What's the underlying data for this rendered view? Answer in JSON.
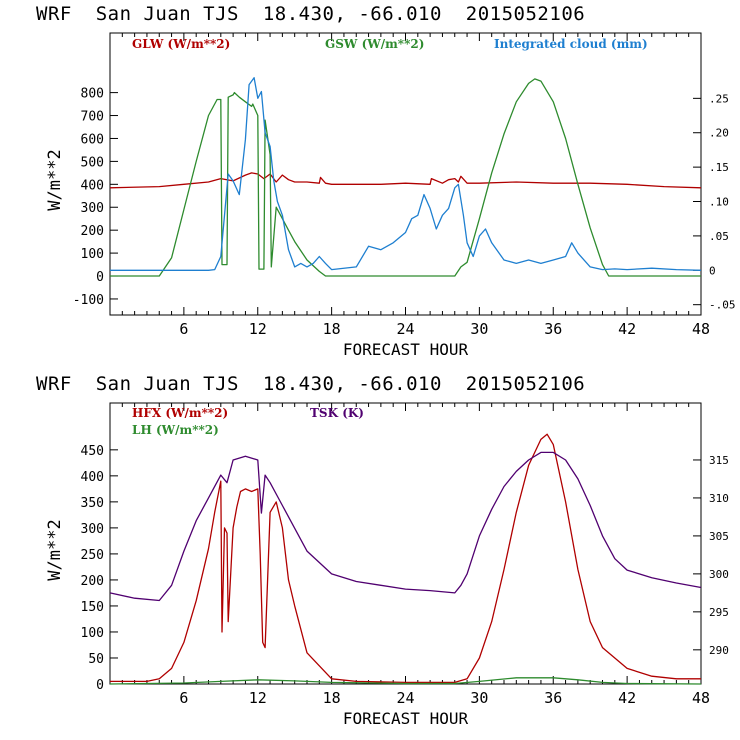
{
  "chart_data": [
    {
      "type": "line",
      "title": "WRF  San Juan TJS  18.430, -66.010  2015052106",
      "xlabel": "FORECAST HOUR",
      "ylabel": "W/m**2",
      "xlim": [
        0,
        48
      ],
      "ylim": [
        -170,
        1060
      ],
      "y2lim": [
        -0.065,
        0.345
      ],
      "xticks": [
        6,
        12,
        18,
        24,
        30,
        36,
        42,
        48
      ],
      "yticks": [
        -100,
        0,
        100,
        200,
        300,
        400,
        500,
        600,
        700,
        800
      ],
      "y2ticks": [
        -0.05,
        0,
        0.05,
        0.1,
        0.15,
        0.2,
        0.25
      ],
      "y2ticklabels": [
        "-.05",
        "0",
        ".05",
        ".10",
        ".15",
        ".20",
        ".25"
      ],
      "grid": false,
      "legend": "top",
      "series": [
        {
          "name": "GLW (W/m**2)",
          "color": "#b00000",
          "axis": "left",
          "x": [
            0,
            4,
            6,
            8,
            9,
            10,
            11,
            11.5,
            12,
            12.5,
            13,
            13.5,
            14,
            14.5,
            15,
            16,
            17,
            17.1,
            17.5,
            18,
            20,
            22,
            24,
            26,
            26.1,
            27,
            27.5,
            28,
            28.3,
            28.5,
            29,
            30,
            33,
            36,
            39,
            42,
            45,
            48
          ],
          "y": [
            385,
            390,
            400,
            410,
            425,
            415,
            440,
            450,
            445,
            425,
            445,
            410,
            440,
            420,
            410,
            410,
            405,
            430,
            405,
            400,
            400,
            400,
            405,
            400,
            425,
            405,
            420,
            425,
            410,
            435,
            405,
            405,
            410,
            405,
            405,
            400,
            390,
            385
          ]
        },
        {
          "name": "GSW (W/m**2)",
          "color": "#2e8b2e",
          "axis": "left",
          "x": [
            0,
            4,
            5,
            6,
            7,
            8,
            8.7,
            9,
            9.1,
            9.5,
            9.6,
            10,
            10.1,
            10.5,
            11,
            11.5,
            11.6,
            12,
            12.1,
            12.5,
            12.6,
            13,
            13.1,
            13.5,
            14,
            14.5,
            15,
            16,
            17,
            17.5,
            18,
            20,
            24,
            28,
            28.5,
            29,
            30,
            31,
            32,
            33,
            34,
            34.5,
            35,
            36,
            37,
            38,
            39,
            40,
            40.5,
            41,
            48
          ],
          "y": [
            0,
            0,
            80,
            290,
            500,
            700,
            770,
            770,
            50,
            50,
            780,
            790,
            800,
            780,
            760,
            740,
            750,
            700,
            30,
            30,
            680,
            530,
            40,
            300,
            250,
            200,
            150,
            70,
            20,
            0,
            0,
            0,
            0,
            0,
            40,
            60,
            250,
            450,
            620,
            760,
            840,
            860,
            850,
            760,
            600,
            400,
            210,
            50,
            0,
            0,
            0
          ]
        },
        {
          "name": "Integrated cloud (mm)",
          "color": "#1e7fd0",
          "axis": "right",
          "x": [
            0,
            8,
            8.5,
            9,
            9.3,
            9.6,
            10,
            10.5,
            11,
            11.3,
            11.7,
            12,
            12.3,
            12.6,
            13,
            13.3,
            13.6,
            14,
            14.5,
            15,
            15.5,
            16,
            16.5,
            17,
            17.5,
            18,
            20,
            21,
            22,
            23,
            24,
            24.5,
            25,
            25.5,
            26,
            26.5,
            27,
            27.5,
            28,
            28.3,
            28.7,
            29,
            29.5,
            30,
            30.5,
            31,
            32,
            33,
            34,
            35,
            36,
            37,
            37.5,
            38,
            39,
            40,
            41,
            42,
            44,
            46,
            48
          ],
          "y": [
            0,
            0,
            0.001,
            0.02,
            0.08,
            0.14,
            0.13,
            0.11,
            0.19,
            0.27,
            0.28,
            0.25,
            0.26,
            0.2,
            0.18,
            0.13,
            0.1,
            0.08,
            0.03,
            0.005,
            0.01,
            0.005,
            0.01,
            0.02,
            0.01,
            0.001,
            0.005,
            0.035,
            0.03,
            0.04,
            0.055,
            0.075,
            0.08,
            0.11,
            0.09,
            0.06,
            0.08,
            0.09,
            0.12,
            0.125,
            0.08,
            0.04,
            0.02,
            0.05,
            0.06,
            0.04,
            0.015,
            0.01,
            0.015,
            0.01,
            0.015,
            0.02,
            0.04,
            0.025,
            0.005,
            0.001,
            0.002,
            0.001,
            0.003,
            0.001,
            0.0
          ]
        }
      ]
    },
    {
      "type": "line",
      "title": "WRF  San Juan TJS  18.430, -66.010  2015052106",
      "xlabel": "FORECAST HOUR",
      "ylabel": "W/m**2",
      "xlim": [
        0,
        48
      ],
      "ylim": [
        0,
        540
      ],
      "y2lim": [
        285.5,
        322.5
      ],
      "xticks": [
        6,
        12,
        18,
        24,
        30,
        36,
        42,
        48
      ],
      "yticks": [
        0,
        50,
        100,
        150,
        200,
        250,
        300,
        350,
        400,
        450
      ],
      "y2ticks": [
        290,
        295,
        300,
        305,
        310,
        315
      ],
      "y2ticklabels": [
        "290",
        "295",
        "300",
        "305",
        "310",
        "315"
      ],
      "grid": false,
      "legend": "top-left",
      "series": [
        {
          "name": "HFX (W/m**2)",
          "color": "#b00000",
          "axis": "left",
          "x": [
            0,
            3,
            4,
            5,
            6,
            7,
            8,
            8.5,
            9,
            9.1,
            9.3,
            9.5,
            9.6,
            10,
            10.3,
            10.6,
            11,
            11.5,
            12,
            12.2,
            12.4,
            12.6,
            13,
            13.5,
            14,
            14.5,
            15,
            16,
            17,
            18,
            20,
            24,
            28,
            29,
            30,
            31,
            32,
            33,
            34,
            35,
            35.5,
            36,
            37,
            38,
            39,
            40,
            41,
            42,
            44,
            46,
            48
          ],
          "y": [
            5,
            5,
            10,
            30,
            80,
            160,
            260,
            330,
            390,
            100,
            300,
            290,
            120,
            300,
            340,
            370,
            375,
            370,
            375,
            250,
            80,
            70,
            330,
            350,
            300,
            200,
            150,
            60,
            35,
            10,
            5,
            3,
            3,
            10,
            50,
            120,
            220,
            330,
            420,
            470,
            480,
            460,
            350,
            220,
            120,
            70,
            50,
            30,
            15,
            10,
            10
          ]
        },
        {
          "name": "LH (W/m**2)",
          "color": "#2e8b2e",
          "axis": "left",
          "x": [
            0,
            6,
            9,
            12,
            15,
            18,
            24,
            28,
            30,
            33,
            36,
            38,
            40,
            42,
            48
          ],
          "y": [
            0,
            2,
            5,
            8,
            6,
            3,
            1,
            1,
            5,
            12,
            12,
            8,
            3,
            1,
            0
          ]
        },
        {
          "name": "TSK (K)",
          "color": "#500070",
          "axis": "right",
          "x": [
            0,
            2,
            4,
            5,
            6,
            7,
            8,
            9,
            9.5,
            10,
            11,
            12,
            12.3,
            12.6,
            13,
            14,
            15,
            16,
            17,
            18,
            20,
            22,
            24,
            26,
            28,
            28.5,
            29,
            30,
            31,
            32,
            33,
            34,
            35,
            36,
            37,
            38,
            39,
            40,
            41,
            42,
            44,
            46,
            48
          ],
          "y": [
            297.5,
            296.8,
            296.5,
            298.5,
            303,
            307,
            310,
            313,
            312,
            315,
            315.5,
            315,
            308,
            313,
            312,
            309,
            306,
            303,
            301.5,
            300,
            299,
            298.5,
            298,
            297.8,
            297.5,
            298.5,
            300,
            305,
            308.5,
            311.5,
            313.5,
            315,
            316,
            316,
            315,
            312.5,
            309,
            305,
            302,
            300.5,
            299.5,
            298.8,
            298.2
          ]
        }
      ]
    }
  ]
}
